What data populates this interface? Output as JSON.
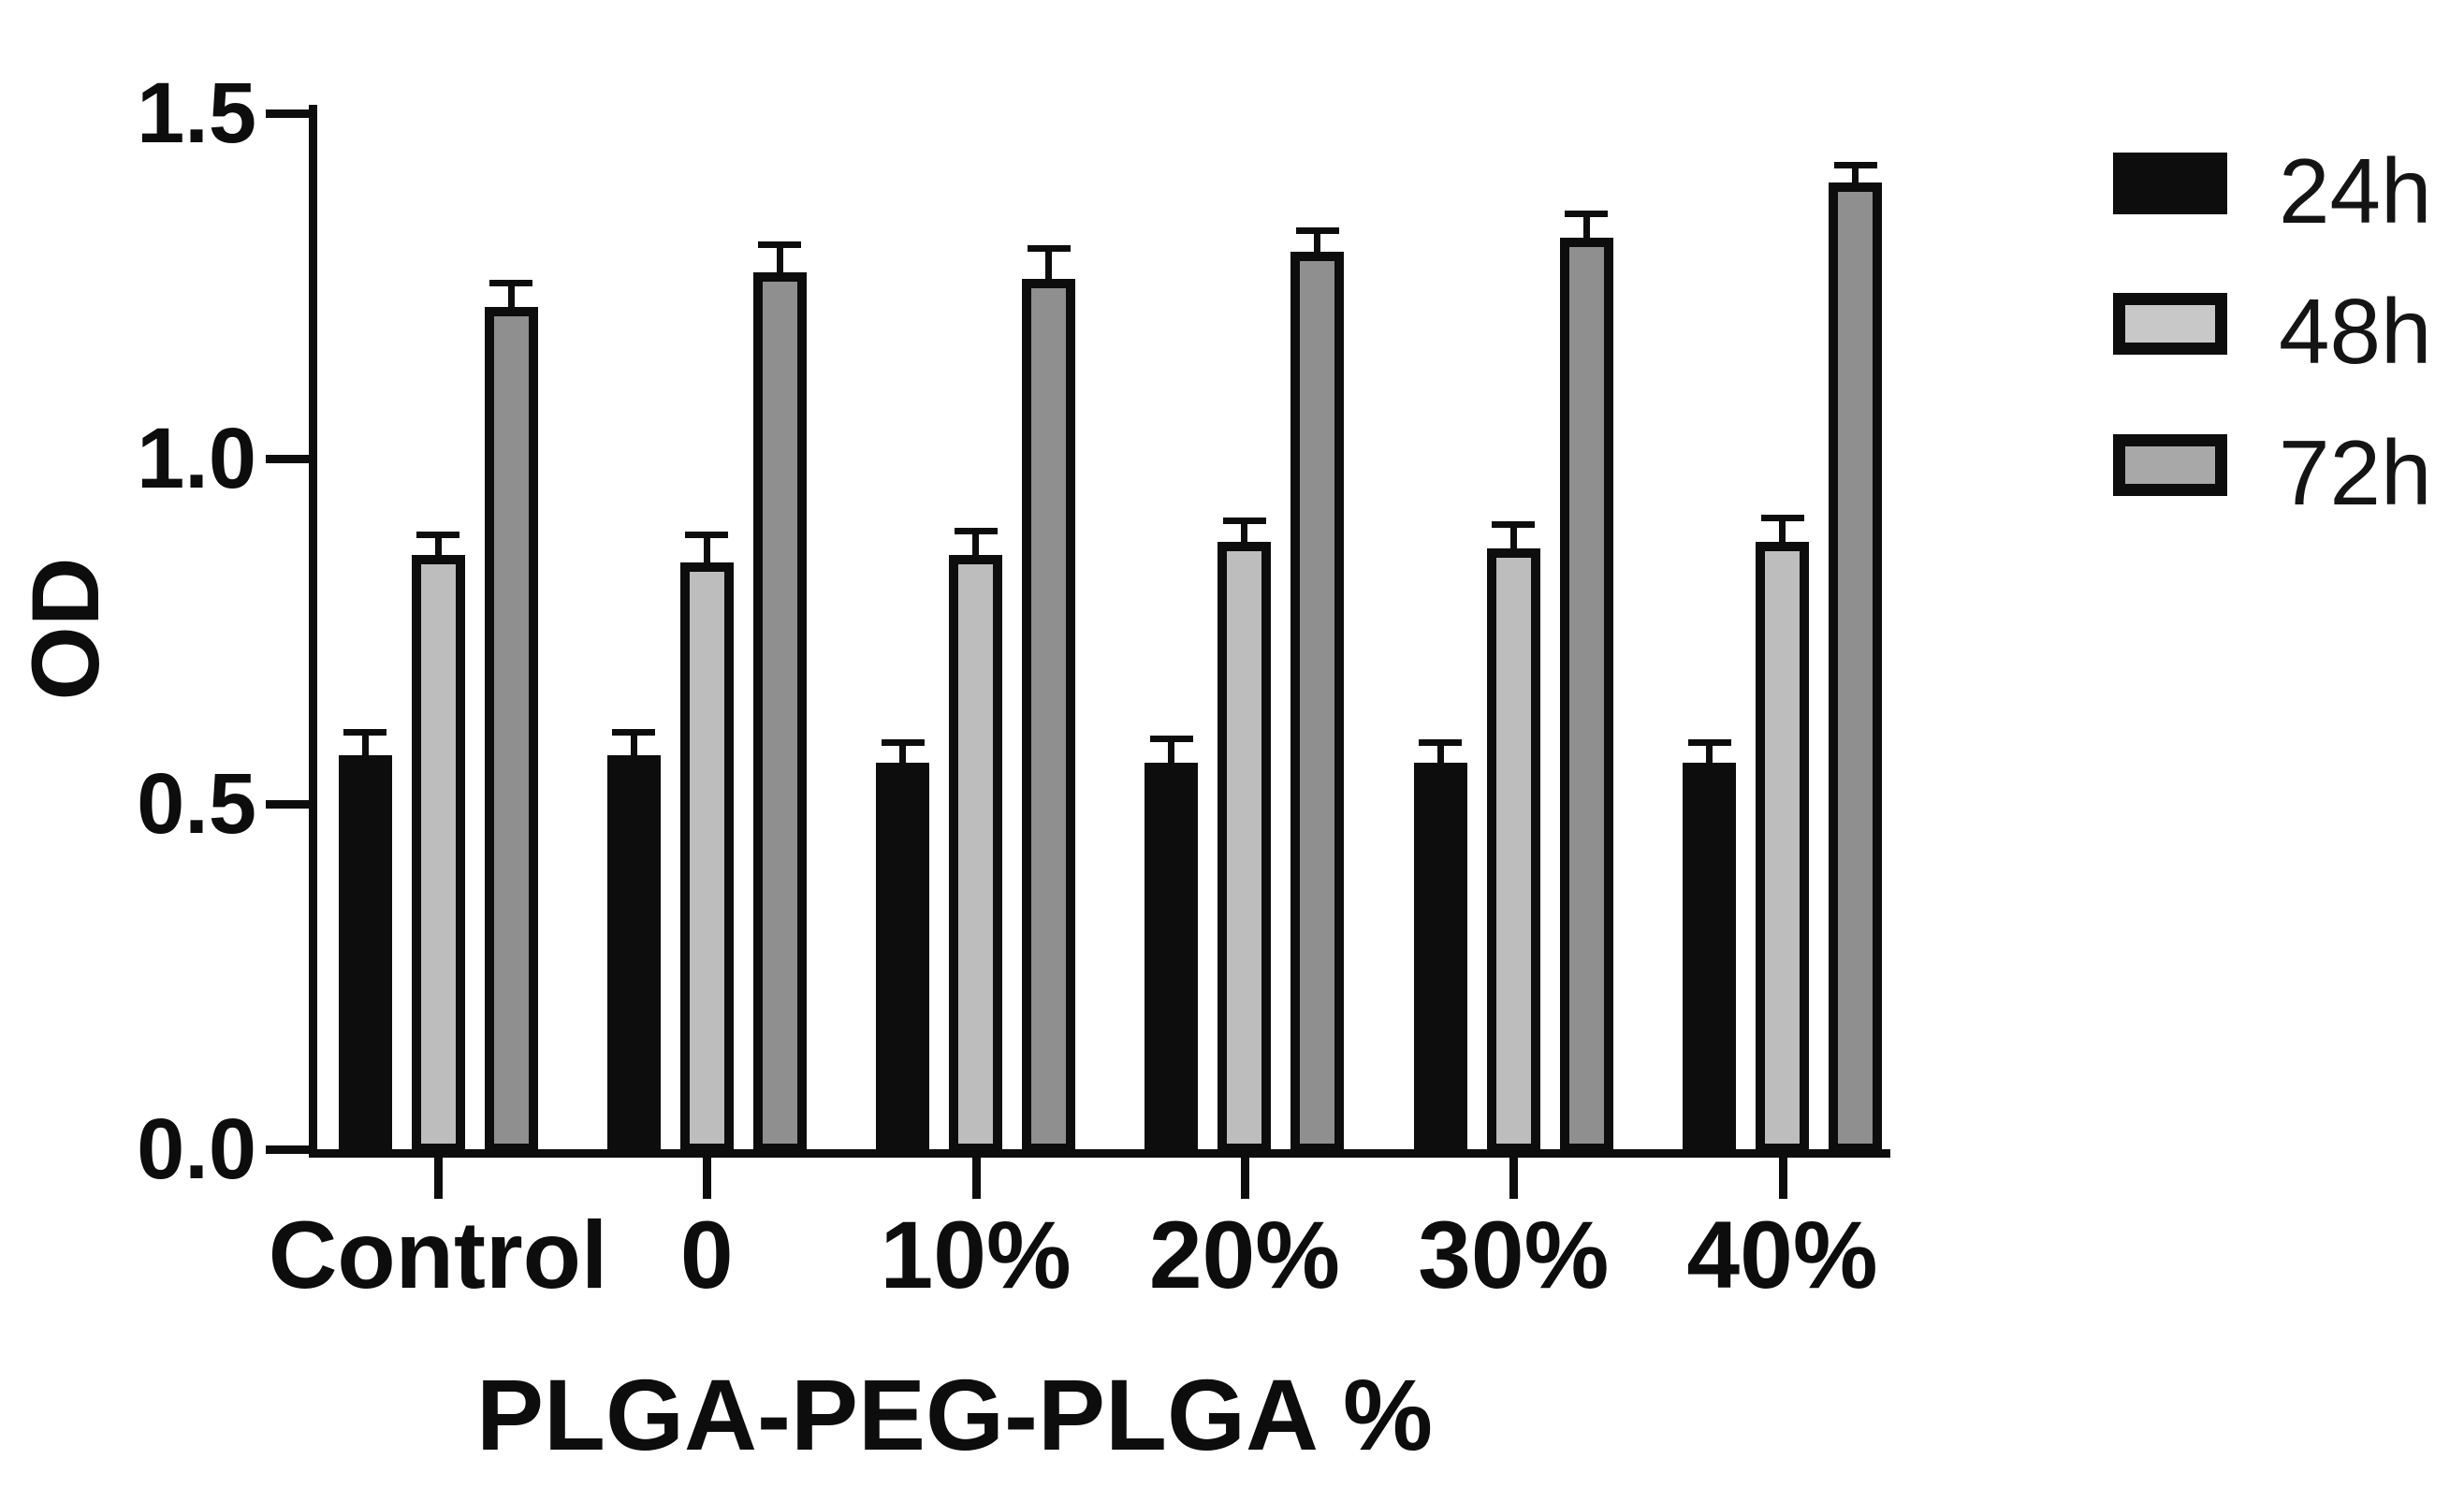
{
  "figure": {
    "background": "#ffffff",
    "ink_color": "#0d0d0d"
  },
  "chart_data": {
    "type": "bar",
    "title": "",
    "xlabel": "PLGA-PEG-PLGA %",
    "ylabel": "OD",
    "ylim": [
      0,
      1.5
    ],
    "yticks": [
      0.0,
      0.5,
      1.0,
      1.5
    ],
    "ytick_labels": [
      "0.0",
      "0.5",
      "1.0",
      "1.5"
    ],
    "categories": [
      "Control",
      "0",
      "10%",
      "20%",
      "30%",
      "40%"
    ],
    "grid": false,
    "error_bars": true,
    "legend_position": "right",
    "series": [
      {
        "name": "24h",
        "values": [
          0.57,
          0.57,
          0.56,
          0.56,
          0.56,
          0.56
        ],
        "errors": [
          0.035,
          0.035,
          0.03,
          0.035,
          0.03,
          0.03
        ],
        "bar_fill": "#0d0d0d",
        "bar_border": "#0d0d0d"
      },
      {
        "name": "48h",
        "values": [
          0.86,
          0.85,
          0.86,
          0.88,
          0.87,
          0.88
        ],
        "errors": [
          0.03,
          0.04,
          0.035,
          0.03,
          0.035,
          0.035
        ],
        "bar_fill": "#bdbdbd",
        "bar_border": "#0d0d0d"
      },
      {
        "name": "72h",
        "values": [
          1.22,
          1.27,
          1.26,
          1.3,
          1.32,
          1.4
        ],
        "errors": [
          0.035,
          0.04,
          0.045,
          0.03,
          0.035,
          0.025
        ],
        "bar_fill": "#8f8f8f",
        "bar_border": "#0d0d0d"
      }
    ],
    "legend": {
      "items": [
        {
          "label": "24h",
          "swatch_fill": "#0d0d0d",
          "swatch_border": "#0d0d0d"
        },
        {
          "label": "48h",
          "swatch_fill": "#c8c8c8",
          "swatch_border": "#0d0d0d"
        },
        {
          "label": "72h",
          "swatch_fill": "#a8a8a8",
          "swatch_border": "#0d0d0d"
        }
      ]
    }
  }
}
